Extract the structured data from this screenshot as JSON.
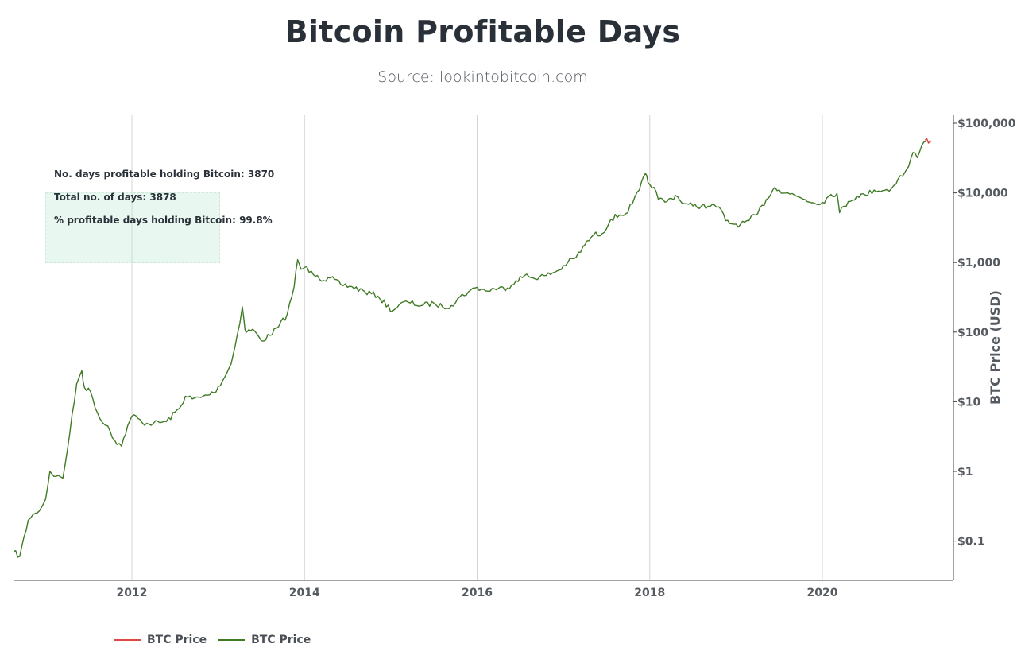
{
  "title": "Bitcoin Profitable Days",
  "subtitle": "Source: lookintobitcoin.com",
  "stats": {
    "days_profitable": "No. days profitable holding Bitcoin: 3870",
    "total_days": "Total no. of days: 3878",
    "percent_profitable": "% profitable days holding Bitcoin: 99.8%"
  },
  "legend": [
    {
      "label": "BTC Price",
      "color": "#e04848"
    },
    {
      "label": "BTC Price",
      "color": "#3f7a24"
    }
  ],
  "chart_data": {
    "type": "line",
    "title": "Bitcoin Profitable Days",
    "xlabel": "",
    "ylabel": "BTC Price (USD)",
    "y_scale": "log",
    "ylim": [
      0.03,
      130000
    ],
    "xlim": [
      2010.63,
      2021.4
    ],
    "x_ticks": [
      2012,
      2014,
      2016,
      2018,
      2020
    ],
    "x_tick_labels": [
      "2012",
      "2014",
      "2016",
      "2018",
      "2020"
    ],
    "y_ticks": [
      0.1,
      1,
      10,
      100,
      1000,
      10000,
      100000
    ],
    "y_tick_labels": [
      "$0.1",
      "$1",
      "$10",
      "$100",
      "$1,000",
      "$10,000",
      "$100,000"
    ],
    "grid": "vertical",
    "series": [
      {
        "name": "BTC Price",
        "color": "#3f7a24",
        "x": [
          2010.63,
          2010.7,
          2010.8,
          2010.88,
          2010.95,
          2011.0,
          2011.05,
          2011.12,
          2011.2,
          2011.28,
          2011.36,
          2011.42,
          2011.45,
          2011.52,
          2011.6,
          2011.66,
          2011.72,
          2011.8,
          2011.88,
          2011.95,
          2012.02,
          2012.12,
          2012.25,
          2012.4,
          2012.55,
          2012.62,
          2012.7,
          2012.8,
          2012.95,
          2013.05,
          2013.15,
          2013.22,
          2013.28,
          2013.31,
          2013.33,
          2013.4,
          2013.5,
          2013.6,
          2013.7,
          2013.8,
          2013.88,
          2013.92,
          2013.96,
          2014.0,
          2014.08,
          2014.15,
          2014.22,
          2014.3,
          2014.42,
          2014.55,
          2014.7,
          2014.85,
          2015.02,
          2015.1,
          2015.2,
          2015.35,
          2015.5,
          2015.6,
          2015.7,
          2015.8,
          2015.9,
          2016.0,
          2016.1,
          2016.2,
          2016.35,
          2016.45,
          2016.55,
          2016.65,
          2016.8,
          2016.95,
          2017.05,
          2017.15,
          2017.25,
          2017.35,
          2017.45,
          2017.55,
          2017.65,
          2017.72,
          2017.8,
          2017.88,
          2017.95,
          2017.98,
          2018.05,
          2018.1,
          2018.2,
          2018.3,
          2018.4,
          2018.5,
          2018.6,
          2018.7,
          2018.8,
          2018.88,
          2018.95,
          2019.05,
          2019.15,
          2019.25,
          2019.35,
          2019.45,
          2019.5,
          2019.6,
          2019.7,
          2019.8,
          2019.9,
          2020.0,
          2020.1,
          2020.17,
          2020.2,
          2020.3,
          2020.4,
          2020.5,
          2020.6,
          2020.7,
          2020.8,
          2020.88,
          2020.95,
          2021.0,
          2021.05,
          2021.1,
          2021.15,
          2021.2
        ],
        "values": [
          0.07,
          0.06,
          0.2,
          0.25,
          0.3,
          0.4,
          1.0,
          0.85,
          0.8,
          3.5,
          18,
          28,
          16,
          14,
          7,
          5,
          4.5,
          2.8,
          2.3,
          4.5,
          6.5,
          5,
          4.9,
          5.2,
          8,
          12,
          11,
          11.5,
          13.5,
          20,
          35,
          90,
          230,
          110,
          100,
          110,
          75,
          90,
          120,
          180,
          450,
          1100,
          800,
          850,
          750,
          650,
          550,
          600,
          480,
          450,
          380,
          330,
          200,
          250,
          270,
          240,
          260,
          230,
          240,
          320,
          380,
          440,
          390,
          420,
          430,
          550,
          650,
          600,
          650,
          780,
          1000,
          1200,
          1800,
          2500,
          2600,
          4200,
          4800,
          5000,
          7000,
          11000,
          19000,
          14000,
          12000,
          8000,
          7500,
          9200,
          7000,
          6500,
          6500,
          6400,
          6300,
          4000,
          3600,
          3500,
          4000,
          5000,
          8000,
          12000,
          11000,
          10000,
          9000,
          8000,
          7200,
          7300,
          9500,
          9800,
          5200,
          7500,
          9000,
          9300,
          11000,
          10800,
          11500,
          16000,
          19000,
          24000,
          38000,
          32000,
          47000,
          55000
        ]
      },
      {
        "name": "BTC Price",
        "color": "#e04848",
        "x": [
          2021.19,
          2021.21,
          2021.23,
          2021.26
        ],
        "values": [
          57000,
          60000,
          52000,
          56000
        ]
      }
    ]
  }
}
